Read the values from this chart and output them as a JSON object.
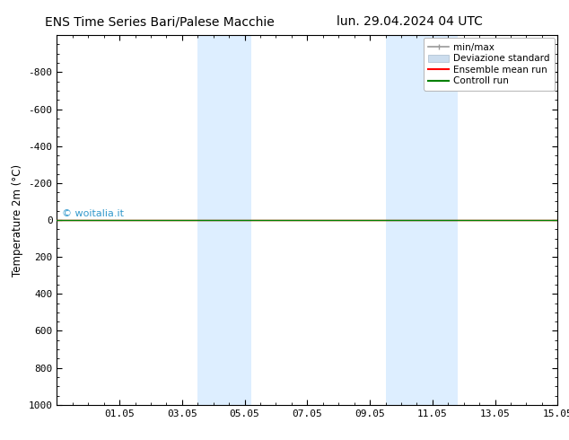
{
  "title_left": "ENS Time Series Bari/Palese Macchie",
  "title_right": "lun. 29.04.2024 04 UTC",
  "ylabel": "Temperature 2m (°C)",
  "ylim_top": -1000,
  "ylim_bottom": 1000,
  "yticks": [
    -800,
    -600,
    -400,
    -200,
    0,
    200,
    400,
    600,
    800,
    1000
  ],
  "xlim_left": 0.0,
  "xlim_right": 16.0,
  "xtick_positions": [
    2,
    4,
    6,
    8,
    10,
    12,
    14,
    16
  ],
  "xtick_labels": [
    "01.05",
    "03.05",
    "05.05",
    "07.05",
    "09.05",
    "11.05",
    "13.05",
    "15.05"
  ],
  "shaded_bands": [
    {
      "x_start": 4.5,
      "x_end": 6.2
    },
    {
      "x_start": 10.5,
      "x_end": 12.8
    }
  ],
  "shade_color": "#ddeeff",
  "green_line_color": "#008000",
  "red_line_color": "#ff0000",
  "watermark_text": "© woitalia.it",
  "watermark_color": "#3399cc",
  "legend_labels": [
    "min/max",
    "Deviazione standard",
    "Ensemble mean run",
    "Controll run"
  ],
  "legend_colors_line": [
    "#999999",
    "#cccccc",
    "#ff0000",
    "#008000"
  ],
  "bg_color": "#ffffff",
  "plot_bg_color": "#ffffff",
  "font_size_title": 10,
  "font_size_tick": 8,
  "font_size_legend": 7.5,
  "font_size_ylabel": 8.5,
  "font_size_watermark": 8
}
